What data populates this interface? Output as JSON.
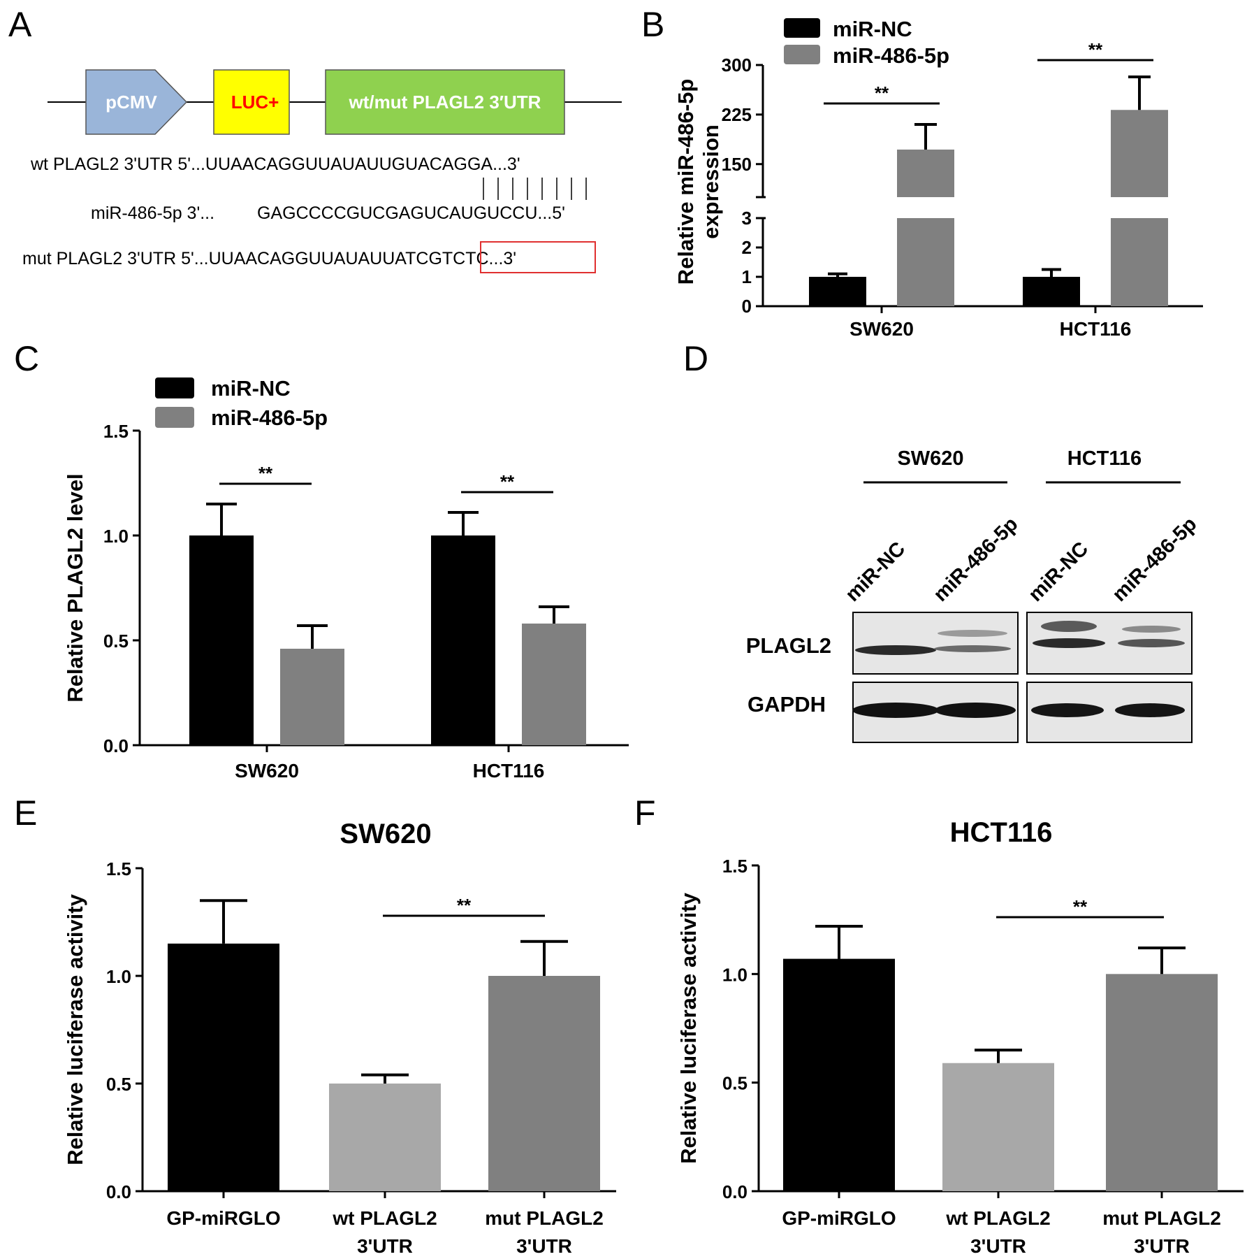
{
  "colors": {
    "nc": "#000000",
    "mir": "#808080",
    "wt": "#a8a8a8",
    "mut": "#808080",
    "pcmv": "#9ab5d9",
    "luc": "#ffff00",
    "utr": "#8fd14f",
    "luc_text": "#ff0000",
    "mut_box": "#e03030"
  },
  "panel_a": {
    "letter": "A",
    "construct": {
      "pcmv": "pCMV",
      "luc": "LUC+",
      "utr": "wt/mut PLAGL2 3′UTR"
    },
    "wt_label": "wt PLAGL2 3'UTR 5'...",
    "wt_seq": "UUAACAGGUUAUAUUGUACAGGA",
    "wt_end": "...3'",
    "mir_label": "miR-486-5p 3'...",
    "mir_seq": "GAGCCCCGUCGAGUCAUGUCCU",
    "mir_end": "...5'",
    "pairing": "|||||||| ",
    "mut_label": "mut PLAGL2 3'UTR 5'...",
    "mut_seq_prefix": "UUAACAGGUUAUAUU",
    "mut_seq_mut": "ATCGTCTC",
    "mut_end": "...3'"
  },
  "panel_d": {
    "letter": "D",
    "groups": [
      "SW620",
      "HCT116"
    ],
    "lanes": [
      "miR-NC",
      "miR-486-5p",
      "miR-NC",
      "miR-486-5p"
    ],
    "rows": [
      "PLAGL2",
      "GAPDH"
    ]
  },
  "chart_data": [
    {
      "panel": "B",
      "type": "bar",
      "categories": [
        "SW620",
        "HCT116"
      ],
      "series": [
        {
          "name": "miR-NC",
          "values": [
            1.0,
            1.0
          ],
          "errors": [
            0.1,
            0.25
          ]
        },
        {
          "name": "miR-486-5p",
          "values": [
            172,
            232
          ],
          "errors": [
            38,
            50
          ]
        }
      ],
      "ylabel": "Relative miR-486-5p expression",
      "ylabel_lines": [
        "Relative miR-486-5p",
        "expression"
      ],
      "axis_break": {
        "lower": [
          0,
          3
        ],
        "upper": [
          100,
          300
        ]
      },
      "yticks_lower": [
        "0",
        "1",
        "2",
        "3"
      ],
      "yticks_upper": [
        "150",
        "225",
        "300"
      ],
      "significance": [
        "**",
        "**"
      ],
      "legend": "top-left"
    },
    {
      "panel": "C",
      "type": "bar",
      "categories": [
        "SW620",
        "HCT116"
      ],
      "series": [
        {
          "name": "miR-NC",
          "values": [
            1.0,
            1.0
          ],
          "errors": [
            0.15,
            0.11
          ]
        },
        {
          "name": "miR-486-5p",
          "values": [
            0.46,
            0.58
          ],
          "errors": [
            0.11,
            0.08
          ]
        }
      ],
      "ylabel": "Relative PLAGL2 level",
      "ylim": [
        0,
        1.5
      ],
      "yticks": [
        "0.0",
        "0.5",
        "1.0",
        "1.5"
      ],
      "significance": [
        "**",
        "**"
      ],
      "legend": "top-left"
    },
    {
      "panel": "E",
      "type": "bar",
      "title": "SW620",
      "categories": [
        [
          "GP-miRGLO"
        ],
        [
          "wt PLAGL2",
          "3'UTR"
        ],
        [
          "mut PLAGL2",
          "3'UTR"
        ]
      ],
      "values": [
        1.15,
        0.5,
        1.0
      ],
      "errors": [
        0.2,
        0.04,
        0.16
      ],
      "ylabel": "Relative luciferase activity",
      "ylim": [
        0,
        1.5
      ],
      "yticks": [
        "0.0",
        "0.5",
        "1.0",
        "1.5"
      ],
      "significance": "**"
    },
    {
      "panel": "F",
      "type": "bar",
      "title": "HCT116",
      "categories": [
        [
          "GP-miRGLO"
        ],
        [
          "wt PLAGL2",
          "3'UTR"
        ],
        [
          "mut PLAGL2",
          "3'UTR"
        ]
      ],
      "values": [
        1.07,
        0.59,
        1.0
      ],
      "errors": [
        0.15,
        0.06,
        0.12
      ],
      "ylabel": "Relative luciferase activity",
      "ylim": [
        0,
        1.5
      ],
      "yticks": [
        "0.0",
        "0.5",
        "1.0",
        "1.5"
      ],
      "significance": "**"
    }
  ]
}
